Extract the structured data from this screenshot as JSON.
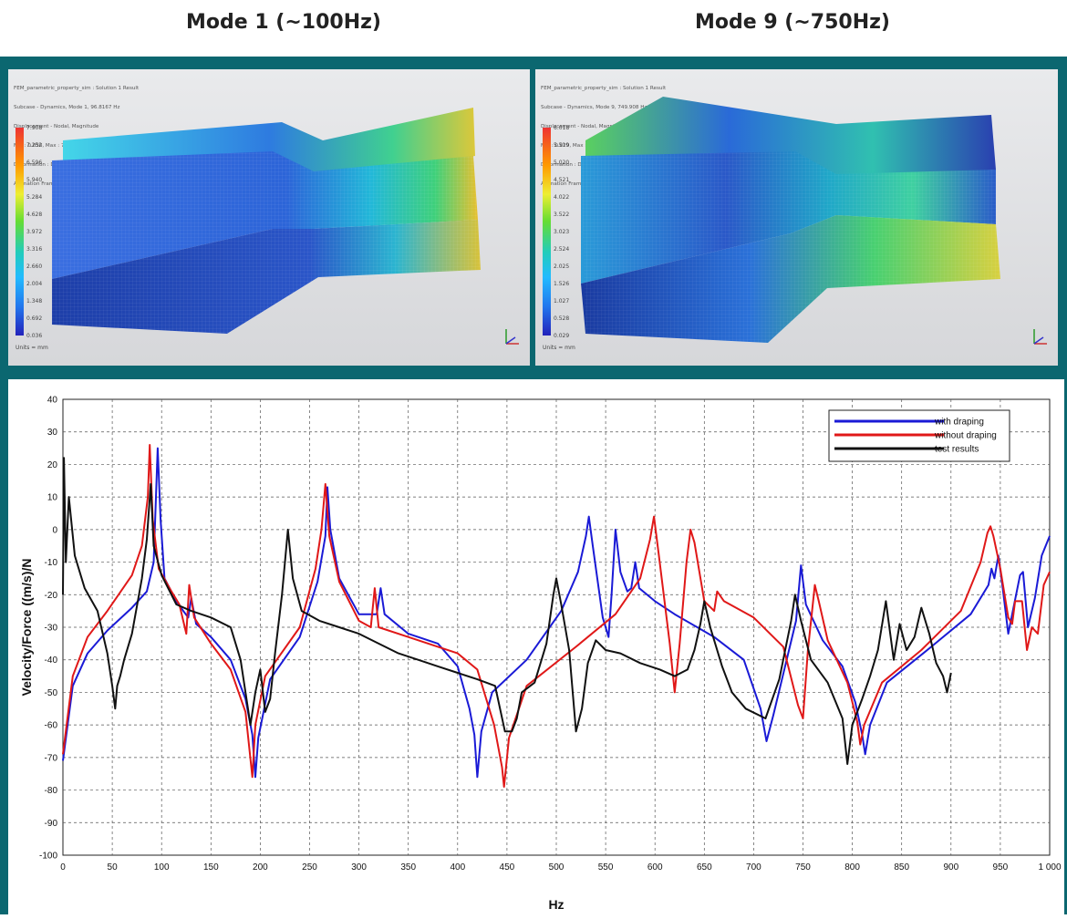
{
  "mode_titles": {
    "left": "Mode 1 (~100Hz)",
    "right": "Mode 9 (~750Hz)"
  },
  "fem_left": {
    "header": [
      "FEM_parametric_property_sim : Solution 1 Result",
      "Subcase - Dynamics, Mode 1, 96.8167 Hz",
      "Displacement - Nodal, Magnitude",
      "Min : 0.036, Max : 7.908, Units = mm",
      "Deformation : Displacement - Nodal Magnitude",
      "Animation Frame 1 of 8"
    ],
    "scale": [
      "7.908",
      "7.252",
      "6.596",
      "5.940",
      "5.284",
      "4.628",
      "3.972",
      "3.316",
      "2.660",
      "2.004",
      "1.348",
      "0.692",
      "0.036"
    ],
    "units": "Units = mm"
  },
  "fem_right": {
    "header": [
      "FEM_parametric_property_sim : Solution 1 Result",
      "Subcase - Dynamics, Mode 9, 749.908 Hz",
      "Displacement - Nodal, Magnitude",
      "Min : 0.029, Max : 6.018, Units = mm",
      "Deformation : Displacement - Nodal Magnitude",
      "Animation Frame 1 of 8"
    ],
    "scale": [
      "6.018",
      "5.519",
      "5.020",
      "4.521",
      "4.022",
      "3.522",
      "3.023",
      "2.524",
      "2.025",
      "1.526",
      "1.027",
      "0.528",
      "0.029"
    ],
    "units": "Units = mm"
  },
  "chart_data": {
    "type": "line",
    "xlabel": "Hz",
    "ylabel": "Velocity/Force ((m/s)/N",
    "xlim": [
      0,
      1000
    ],
    "ylim": [
      -100,
      40
    ],
    "xticks": [
      0,
      50,
      100,
      150,
      200,
      250,
      300,
      350,
      400,
      450,
      500,
      550,
      600,
      650,
      700,
      750,
      800,
      850,
      900,
      950,
      1000
    ],
    "xtick_labels": [
      "0",
      "50",
      "100",
      "150",
      "200",
      "250",
      "300",
      "350",
      "400",
      "450",
      "500",
      "550",
      "600",
      "650",
      "700",
      "750",
      "800",
      "850",
      "900",
      "950",
      "1 000"
    ],
    "yticks": [
      40,
      30,
      20,
      10,
      0,
      -10,
      -20,
      -30,
      -40,
      -50,
      -60,
      -70,
      -80,
      -90,
      -100
    ],
    "grid": true,
    "legend_position": "top-right",
    "series": [
      {
        "name": "with draping",
        "color": "#1a1ad6",
        "points": [
          [
            0,
            -71
          ],
          [
            10,
            -48
          ],
          [
            25,
            -38
          ],
          [
            45,
            -31
          ],
          [
            70,
            -24
          ],
          [
            85,
            -19
          ],
          [
            92,
            -10
          ],
          [
            96,
            25
          ],
          [
            99,
            3
          ],
          [
            103,
            -15
          ],
          [
            115,
            -22
          ],
          [
            122,
            -25
          ],
          [
            127,
            -27
          ],
          [
            130,
            -21
          ],
          [
            135,
            -29
          ],
          [
            150,
            -33
          ],
          [
            170,
            -40
          ],
          [
            185,
            -52
          ],
          [
            192,
            -63
          ],
          [
            195,
            -76
          ],
          [
            198,
            -64
          ],
          [
            210,
            -46
          ],
          [
            240,
            -33
          ],
          [
            258,
            -16
          ],
          [
            266,
            -2
          ],
          [
            268,
            13
          ],
          [
            271,
            0
          ],
          [
            280,
            -15
          ],
          [
            300,
            -26
          ],
          [
            318,
            -26
          ],
          [
            322,
            -18
          ],
          [
            326,
            -26
          ],
          [
            350,
            -32
          ],
          [
            380,
            -35
          ],
          [
            400,
            -42
          ],
          [
            412,
            -55
          ],
          [
            417,
            -63
          ],
          [
            420,
            -76
          ],
          [
            424,
            -62
          ],
          [
            435,
            -50
          ],
          [
            470,
            -40
          ],
          [
            505,
            -25
          ],
          [
            522,
            -13
          ],
          [
            530,
            -2
          ],
          [
            533,
            4
          ],
          [
            537,
            -5
          ],
          [
            547,
            -27
          ],
          [
            553,
            -33
          ],
          [
            556,
            -20
          ],
          [
            560,
            0
          ],
          [
            565,
            -13
          ],
          [
            572,
            -19
          ],
          [
            576,
            -18
          ],
          [
            580,
            -10
          ],
          [
            584,
            -18
          ],
          [
            600,
            -22
          ],
          [
            620,
            -26
          ],
          [
            660,
            -33
          ],
          [
            690,
            -40
          ],
          [
            707,
            -55
          ],
          [
            713,
            -65
          ],
          [
            720,
            -57
          ],
          [
            735,
            -38
          ],
          [
            743,
            -28
          ],
          [
            748,
            -11
          ],
          [
            753,
            -23
          ],
          [
            770,
            -34
          ],
          [
            790,
            -42
          ],
          [
            803,
            -53
          ],
          [
            810,
            -63
          ],
          [
            813,
            -69
          ],
          [
            818,
            -60
          ],
          [
            835,
            -47
          ],
          [
            880,
            -36
          ],
          [
            920,
            -26
          ],
          [
            938,
            -17
          ],
          [
            941,
            -12
          ],
          [
            944,
            -15
          ],
          [
            948,
            -8
          ],
          [
            952,
            -17
          ],
          [
            958,
            -32
          ],
          [
            962,
            -26
          ],
          [
            970,
            -14
          ],
          [
            973,
            -13
          ],
          [
            978,
            -30
          ],
          [
            985,
            -21
          ],
          [
            992,
            -8
          ],
          [
            1000,
            -2
          ]
        ]
      },
      {
        "name": "without draping",
        "color": "#e01818",
        "points": [
          [
            0,
            -69
          ],
          [
            10,
            -45
          ],
          [
            25,
            -33
          ],
          [
            45,
            -25
          ],
          [
            70,
            -14
          ],
          [
            80,
            -5
          ],
          [
            86,
            10
          ],
          [
            88,
            26
          ],
          [
            91,
            3
          ],
          [
            97,
            -12
          ],
          [
            110,
            -19
          ],
          [
            118,
            -23
          ],
          [
            125,
            -32
          ],
          [
            128,
            -17
          ],
          [
            133,
            -27
          ],
          [
            150,
            -35
          ],
          [
            170,
            -43
          ],
          [
            185,
            -56
          ],
          [
            192,
            -76
          ],
          [
            195,
            -60
          ],
          [
            205,
            -45
          ],
          [
            240,
            -30
          ],
          [
            256,
            -12
          ],
          [
            262,
            0
          ],
          [
            266,
            14
          ],
          [
            270,
            -2
          ],
          [
            280,
            -16
          ],
          [
            300,
            -28
          ],
          [
            312,
            -30
          ],
          [
            316,
            -18
          ],
          [
            320,
            -30
          ],
          [
            350,
            -33
          ],
          [
            380,
            -36
          ],
          [
            400,
            -38
          ],
          [
            420,
            -43
          ],
          [
            437,
            -60
          ],
          [
            445,
            -73
          ],
          [
            447,
            -79
          ],
          [
            452,
            -64
          ],
          [
            470,
            -48
          ],
          [
            520,
            -36
          ],
          [
            560,
            -26
          ],
          [
            585,
            -15
          ],
          [
            595,
            -3
          ],
          [
            599,
            4
          ],
          [
            604,
            -8
          ],
          [
            615,
            -35
          ],
          [
            620,
            -50
          ],
          [
            625,
            -35
          ],
          [
            632,
            -10
          ],
          [
            636,
            0
          ],
          [
            640,
            -4
          ],
          [
            650,
            -22
          ],
          [
            660,
            -25
          ],
          [
            663,
            -19
          ],
          [
            670,
            -22
          ],
          [
            700,
            -27
          ],
          [
            730,
            -36
          ],
          [
            745,
            -54
          ],
          [
            750,
            -58
          ],
          [
            755,
            -37
          ],
          [
            762,
            -17
          ],
          [
            766,
            -22
          ],
          [
            775,
            -34
          ],
          [
            795,
            -47
          ],
          [
            805,
            -59
          ],
          [
            808,
            -66
          ],
          [
            812,
            -60
          ],
          [
            830,
            -47
          ],
          [
            870,
            -37
          ],
          [
            910,
            -25
          ],
          [
            930,
            -10
          ],
          [
            937,
            -1
          ],
          [
            940,
            1
          ],
          [
            943,
            -2
          ],
          [
            950,
            -12
          ],
          [
            958,
            -27
          ],
          [
            962,
            -29
          ],
          [
            965,
            -22
          ],
          [
            972,
            -22
          ],
          [
            977,
            -37
          ],
          [
            982,
            -30
          ],
          [
            988,
            -32
          ],
          [
            994,
            -17
          ],
          [
            1000,
            -13
          ]
        ]
      },
      {
        "name": "test results",
        "color": "#111111",
        "points": [
          [
            0,
            -20
          ],
          [
            1,
            22
          ],
          [
            3,
            -10
          ],
          [
            6,
            10
          ],
          [
            12,
            -8
          ],
          [
            22,
            -18
          ],
          [
            35,
            -25
          ],
          [
            45,
            -38
          ],
          [
            50,
            -48
          ],
          [
            53,
            -55
          ],
          [
            55,
            -48
          ],
          [
            58,
            -45
          ],
          [
            62,
            -40
          ],
          [
            70,
            -32
          ],
          [
            80,
            -15
          ],
          [
            85,
            -3
          ],
          [
            89,
            14
          ],
          [
            92,
            -5
          ],
          [
            100,
            -14
          ],
          [
            115,
            -23
          ],
          [
            130,
            -25
          ],
          [
            150,
            -27
          ],
          [
            170,
            -30
          ],
          [
            180,
            -40
          ],
          [
            186,
            -52
          ],
          [
            190,
            -60
          ],
          [
            195,
            -50
          ],
          [
            200,
            -43
          ],
          [
            205,
            -56
          ],
          [
            210,
            -52
          ],
          [
            215,
            -38
          ],
          [
            222,
            -20
          ],
          [
            228,
            0
          ],
          [
            233,
            -15
          ],
          [
            242,
            -25
          ],
          [
            260,
            -28
          ],
          [
            280,
            -30
          ],
          [
            300,
            -32
          ],
          [
            320,
            -35
          ],
          [
            340,
            -38
          ],
          [
            360,
            -40
          ],
          [
            380,
            -42
          ],
          [
            400,
            -44
          ],
          [
            420,
            -46
          ],
          [
            438,
            -48
          ],
          [
            448,
            -62
          ],
          [
            455,
            -62
          ],
          [
            460,
            -58
          ],
          [
            465,
            -50
          ],
          [
            478,
            -47
          ],
          [
            490,
            -35
          ],
          [
            497,
            -20
          ],
          [
            500,
            -15
          ],
          [
            505,
            -23
          ],
          [
            513,
            -37
          ],
          [
            520,
            -62
          ],
          [
            526,
            -55
          ],
          [
            532,
            -41
          ],
          [
            540,
            -34
          ],
          [
            550,
            -37
          ],
          [
            565,
            -38
          ],
          [
            585,
            -41
          ],
          [
            605,
            -43
          ],
          [
            620,
            -45
          ],
          [
            633,
            -43
          ],
          [
            640,
            -37
          ],
          [
            646,
            -29
          ],
          [
            650,
            -22
          ],
          [
            656,
            -30
          ],
          [
            668,
            -42
          ],
          [
            678,
            -50
          ],
          [
            692,
            -55
          ],
          [
            712,
            -58
          ],
          [
            726,
            -46
          ],
          [
            738,
            -28
          ],
          [
            742,
            -20
          ],
          [
            748,
            -28
          ],
          [
            758,
            -40
          ],
          [
            775,
            -47
          ],
          [
            790,
            -58
          ],
          [
            795,
            -72
          ],
          [
            800,
            -60
          ],
          [
            810,
            -52
          ],
          [
            818,
            -45
          ],
          [
            826,
            -37
          ],
          [
            834,
            -22
          ],
          [
            842,
            -40
          ],
          [
            848,
            -29
          ],
          [
            855,
            -37
          ],
          [
            863,
            -33
          ],
          [
            870,
            -24
          ],
          [
            878,
            -32
          ],
          [
            885,
            -41
          ],
          [
            892,
            -45
          ],
          [
            896,
            -50
          ],
          [
            900,
            -44
          ]
        ]
      }
    ]
  }
}
